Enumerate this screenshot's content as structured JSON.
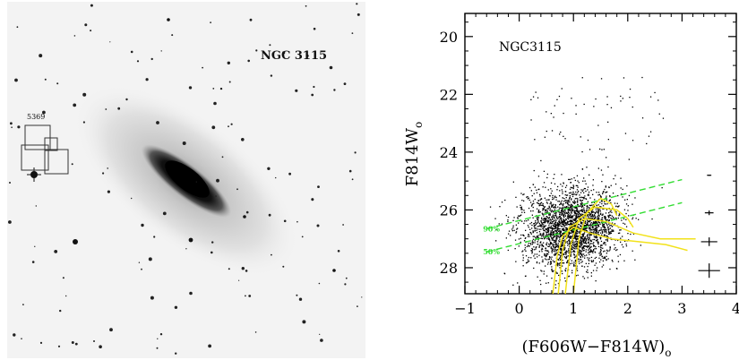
{
  "image": {
    "galaxy_label": "NGC 3115",
    "field_label": "5369",
    "background_color": "#f3f3f3"
  },
  "chart_data": {
    "type": "scatter",
    "title": "NGC3115",
    "xlabel_main": "(F606W−F814W)",
    "xlabel_sub": "o",
    "ylabel_main": "F814W",
    "ylabel_sub": "o",
    "xlim": [
      -1,
      4
    ],
    "ylim": [
      28.9,
      19.2
    ],
    "y_inverted": true,
    "x_ticks": [
      -1,
      0,
      1,
      2,
      3,
      4
    ],
    "x_tick_labels": [
      "−1",
      "0",
      "1",
      "2",
      "3",
      "4"
    ],
    "y_ticks": [
      20,
      22,
      24,
      26,
      28
    ],
    "y_tick_labels": [
      "20",
      "22",
      "24",
      "26",
      "28"
    ],
    "completeness_lines": [
      {
        "label": "90%",
        "x": [
          -0.6,
          3.0
        ],
        "y": [
          26.65,
          24.95
        ],
        "color": "#33dd33"
      },
      {
        "label": "50%",
        "x": [
          -0.6,
          3.0
        ],
        "y": [
          27.45,
          25.75
        ],
        "color": "#33dd33"
      }
    ],
    "isochrones": [
      {
        "x": [
          0.62,
          0.7,
          0.8,
          1.0,
          1.3,
          1.7,
          2.2,
          2.7,
          3.1
        ],
        "y": [
          28.9,
          27.6,
          26.9,
          26.6,
          26.8,
          27.0,
          27.1,
          27.2,
          27.4
        ],
        "color": "#f2e21a"
      },
      {
        "x": [
          0.72,
          0.8,
          0.92,
          1.2,
          1.6,
          2.1,
          2.6,
          3.05,
          3.25
        ],
        "y": [
          28.9,
          27.4,
          26.6,
          26.3,
          26.4,
          26.8,
          27.0,
          27.0,
          27.0
        ],
        "color": "#f2e21a"
      },
      {
        "x": [
          0.85,
          0.95,
          1.1,
          1.4,
          1.8,
          2.0,
          2.1
        ],
        "y": [
          28.9,
          27.2,
          26.3,
          25.9,
          26.0,
          26.3,
          26.6
        ],
        "color": "#f2e21a"
      },
      {
        "x": [
          1.0,
          1.1,
          1.25,
          1.5,
          1.7,
          1.8
        ],
        "y": [
          28.9,
          27.0,
          26.1,
          25.6,
          25.8,
          26.2
        ],
        "color": "#f2e21a"
      }
    ],
    "error_bars": [
      {
        "x": 3.5,
        "y": 24.8,
        "xerr": 0.04,
        "yerr": 0.02
      },
      {
        "x": 3.5,
        "y": 26.1,
        "xerr": 0.08,
        "yerr": 0.08
      },
      {
        "x": 3.5,
        "y": 27.1,
        "xerr": 0.15,
        "yerr": 0.15
      },
      {
        "x": 3.5,
        "y": 28.1,
        "xerr": 0.2,
        "yerr": 0.25
      }
    ],
    "scatter_note": "Dense black point cloud centred near color 1.0 and magnitude 26.6, spread from color -0.7 to 2.8 and magnitude 23 to 28.9; sparse stars up to magnitude 21.3."
  }
}
